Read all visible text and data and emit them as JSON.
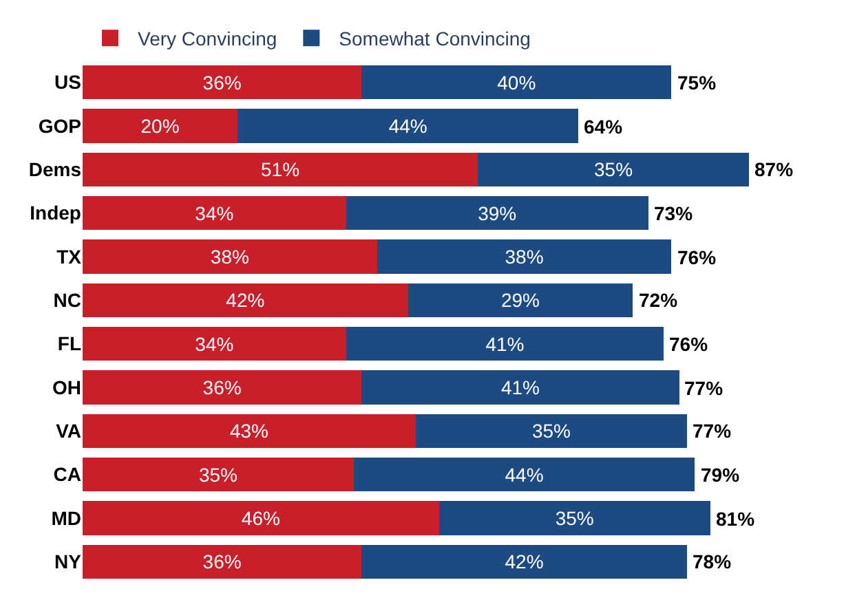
{
  "chart_data": {
    "type": "bar",
    "orientation": "horizontal",
    "stacked": true,
    "categories": [
      "US",
      "GOP",
      "Dems",
      "Indep",
      "TX",
      "NC",
      "FL",
      "OH",
      "VA",
      "CA",
      "MD",
      "NY"
    ],
    "series": [
      {
        "name": "Very Convincing",
        "color": "#c8202a",
        "values": [
          36,
          20,
          51,
          34,
          38,
          42,
          34,
          36,
          43,
          35,
          46,
          36
        ],
        "value_labels": [
          "36%",
          "20%",
          "51%",
          "34%",
          "38%",
          "42%",
          "34%",
          "36%",
          "43%",
          "35%",
          "46%",
          "36%"
        ]
      },
      {
        "name": "Somewhat Convincing",
        "color": "#1d4a80",
        "values": [
          40,
          44,
          35,
          39,
          38,
          29,
          41,
          41,
          35,
          44,
          35,
          42
        ],
        "value_labels": [
          "40%",
          "44%",
          "35%",
          "39%",
          "38%",
          "29%",
          "41%",
          "41%",
          "35%",
          "44%",
          "35%",
          "42%"
        ]
      }
    ],
    "totals": [
      "75%",
      "64%",
      "87%",
      "73%",
      "76%",
      "72%",
      "76%",
      "77%",
      "77%",
      "79%",
      "81%",
      "78%"
    ],
    "legend": "top left"
  }
}
